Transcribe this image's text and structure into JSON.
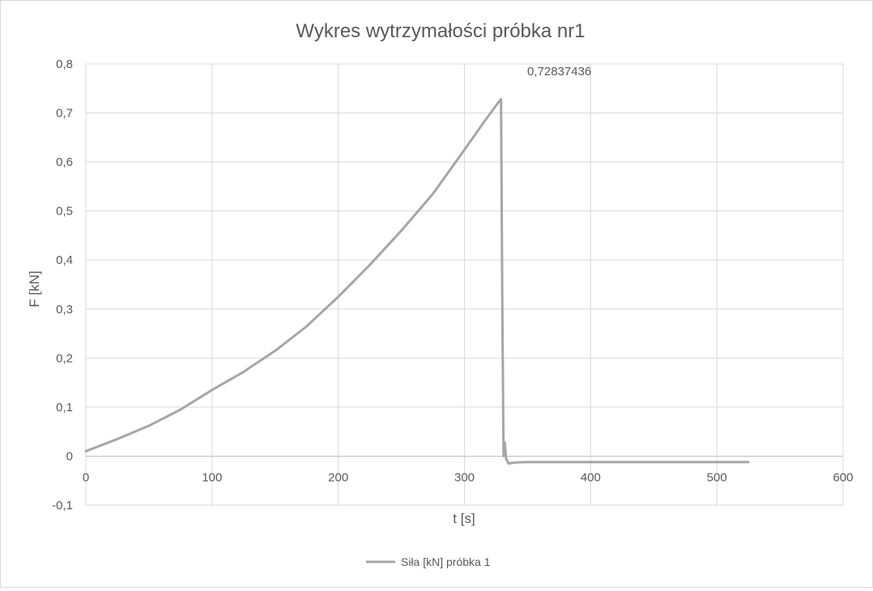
{
  "chart_data": {
    "type": "line",
    "title": "Wykres wytrzymałości próbka nr1",
    "xlabel": "t [s]",
    "ylabel": "F [kN]",
    "xlim": [
      0,
      600
    ],
    "ylim": [
      -0.1,
      0.8
    ],
    "xticks": [
      0,
      100,
      200,
      300,
      400,
      500,
      600
    ],
    "yticks": [
      -0.1,
      0,
      0.1,
      0.2,
      0.3,
      0.4,
      0.5,
      0.6,
      0.7,
      0.8
    ],
    "xtick_labels": [
      "0",
      "100",
      "200",
      "300",
      "400",
      "500",
      "600"
    ],
    "ytick_labels": [
      "-0,1",
      "0",
      "0,1",
      "0,2",
      "0,3",
      "0,4",
      "0,5",
      "0,6",
      "0,7",
      "0,8"
    ],
    "grid": true,
    "legend_position": "bottom",
    "annotation": {
      "text": "0,72837436",
      "x": 329,
      "y": 0.72837436
    },
    "series": [
      {
        "name": "Siła [kN] próbka 1",
        "color": "#a6a6a6",
        "x": [
          0,
          25,
          50,
          75,
          100,
          125,
          150,
          175,
          200,
          225,
          250,
          275,
          300,
          315,
          325,
          329,
          330,
          331,
          332,
          333,
          335,
          340,
          350,
          375,
          400,
          450,
          500,
          525
        ],
        "y": [
          0.01,
          0.035,
          0.062,
          0.095,
          0.135,
          0.172,
          0.215,
          0.265,
          0.325,
          0.39,
          0.46,
          0.535,
          0.625,
          0.68,
          0.715,
          0.72837436,
          0.3,
          0.0,
          0.028,
          -0.005,
          -0.015,
          -0.013,
          -0.012,
          -0.012,
          -0.012,
          -0.012,
          -0.012,
          -0.012
        ]
      }
    ]
  }
}
